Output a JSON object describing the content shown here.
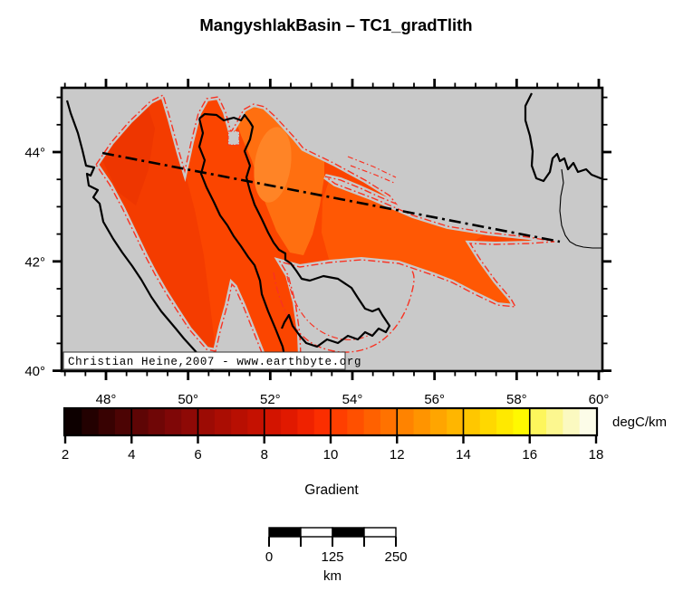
{
  "title": "MangyshlakBasin – TC1_gradTlith",
  "map": {
    "background_color": "#c9c9c9",
    "frame_color": "#000000",
    "copyright": "Christian Heine,2007 - www.earthbyte.org",
    "lat_tick_labels": [
      "44°",
      "42°",
      "40°"
    ],
    "lon_tick_labels": [
      "48°",
      "50°",
      "52°",
      "54°",
      "56°",
      "58°",
      "60°"
    ],
    "region_colors": {
      "base": "#fb4500",
      "west_lobe": "#f43c00",
      "west_edge": "#ee3600",
      "east_band": "#ff5804",
      "northeast": "#ff6f10",
      "northeast_core": "#ff8426"
    },
    "contour_color": "#f93222",
    "coastline_color": "#000000",
    "section_line_color": "#000000"
  },
  "colorbar": {
    "unit_label": "degC/km",
    "axis_label": "Gradient",
    "tick_labels": [
      "2",
      "4",
      "6",
      "8",
      "10",
      "12",
      "14",
      "16",
      "18"
    ],
    "cell_colors": [
      "#0d0000",
      "#230101",
      "#380202",
      "#4c0404",
      "#5e0505",
      "#6f0606",
      "#7f0707",
      "#8e0906",
      "#9c0b04",
      "#aa0d03",
      "#b80f02",
      "#c51101",
      "#d31400",
      "#e11900",
      "#ef2200",
      "#fb2e00",
      "#ff3f00",
      "#ff5000",
      "#ff6100",
      "#ff7200",
      "#ff8300",
      "#ff9400",
      "#ffa500",
      "#ffb600",
      "#ffc700",
      "#ffd800",
      "#ffe900",
      "#fff900",
      "#fdf65c",
      "#fcf78f",
      "#fbf9c0",
      "#fcfce8"
    ]
  },
  "scalebar": {
    "tick_labels": [
      "0",
      "125",
      "250"
    ],
    "unit_label": "km"
  }
}
